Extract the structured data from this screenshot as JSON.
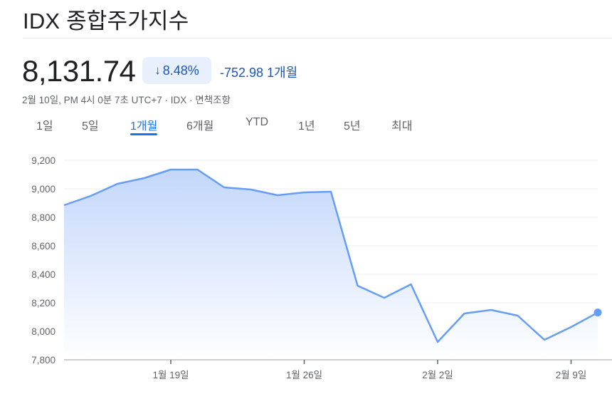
{
  "header": {
    "title": "IDX 종합주가지수",
    "price": "8,131.74",
    "change_percent": "8.48%",
    "change_direction": "down",
    "change_arrow_icon": "arrow-down-icon",
    "change_value": "-752.98",
    "change_period": "1개월",
    "meta": "2월 10일, PM 4시 0분 7초 UTC+7 · IDX · 면책조항"
  },
  "tabs": [
    {
      "label": "1일",
      "active": false
    },
    {
      "label": "5일",
      "active": false
    },
    {
      "label": "1개월",
      "active": true
    },
    {
      "label": "6개월",
      "active": false
    },
    {
      "label": "YTD",
      "active": false
    },
    {
      "label": "1년",
      "active": false
    },
    {
      "label": "5년",
      "active": false
    },
    {
      "label": "최대",
      "active": false
    }
  ],
  "colors": {
    "line": "#669df6",
    "fill_top": "#c6dafc",
    "accent": "#1a73e8",
    "negative_text": "#1a56b8",
    "badge_bg": "#e8f0fe"
  },
  "chart_data": {
    "type": "area",
    "title": "IDX 종합주가지수",
    "xlabel": "",
    "ylabel": "",
    "ylim": [
      7800,
      9200
    ],
    "yticks": [
      7800,
      8000,
      8200,
      8400,
      8600,
      8800,
      9000,
      9200
    ],
    "ytick_labels": [
      "7,800",
      "8,000",
      "8,200",
      "8,400",
      "8,600",
      "8,800",
      "9,000",
      "9,200"
    ],
    "xtick_labels": [
      "1월 19일",
      "1월 26일",
      "2월 2일",
      "2월 9일"
    ],
    "xtick_index": [
      4,
      9,
      14,
      19
    ],
    "grid": true,
    "legend": "none",
    "series": [
      {
        "name": "IDX 종합주가지수",
        "values": [
          8885,
          8950,
          9035,
          9075,
          9135,
          9135,
          9010,
          8995,
          8955,
          8975,
          8980,
          8320,
          8235,
          8330,
          7925,
          8125,
          8150,
          8110,
          7940,
          8030,
          8131.74
        ]
      }
    ],
    "last_point_marker": true
  }
}
